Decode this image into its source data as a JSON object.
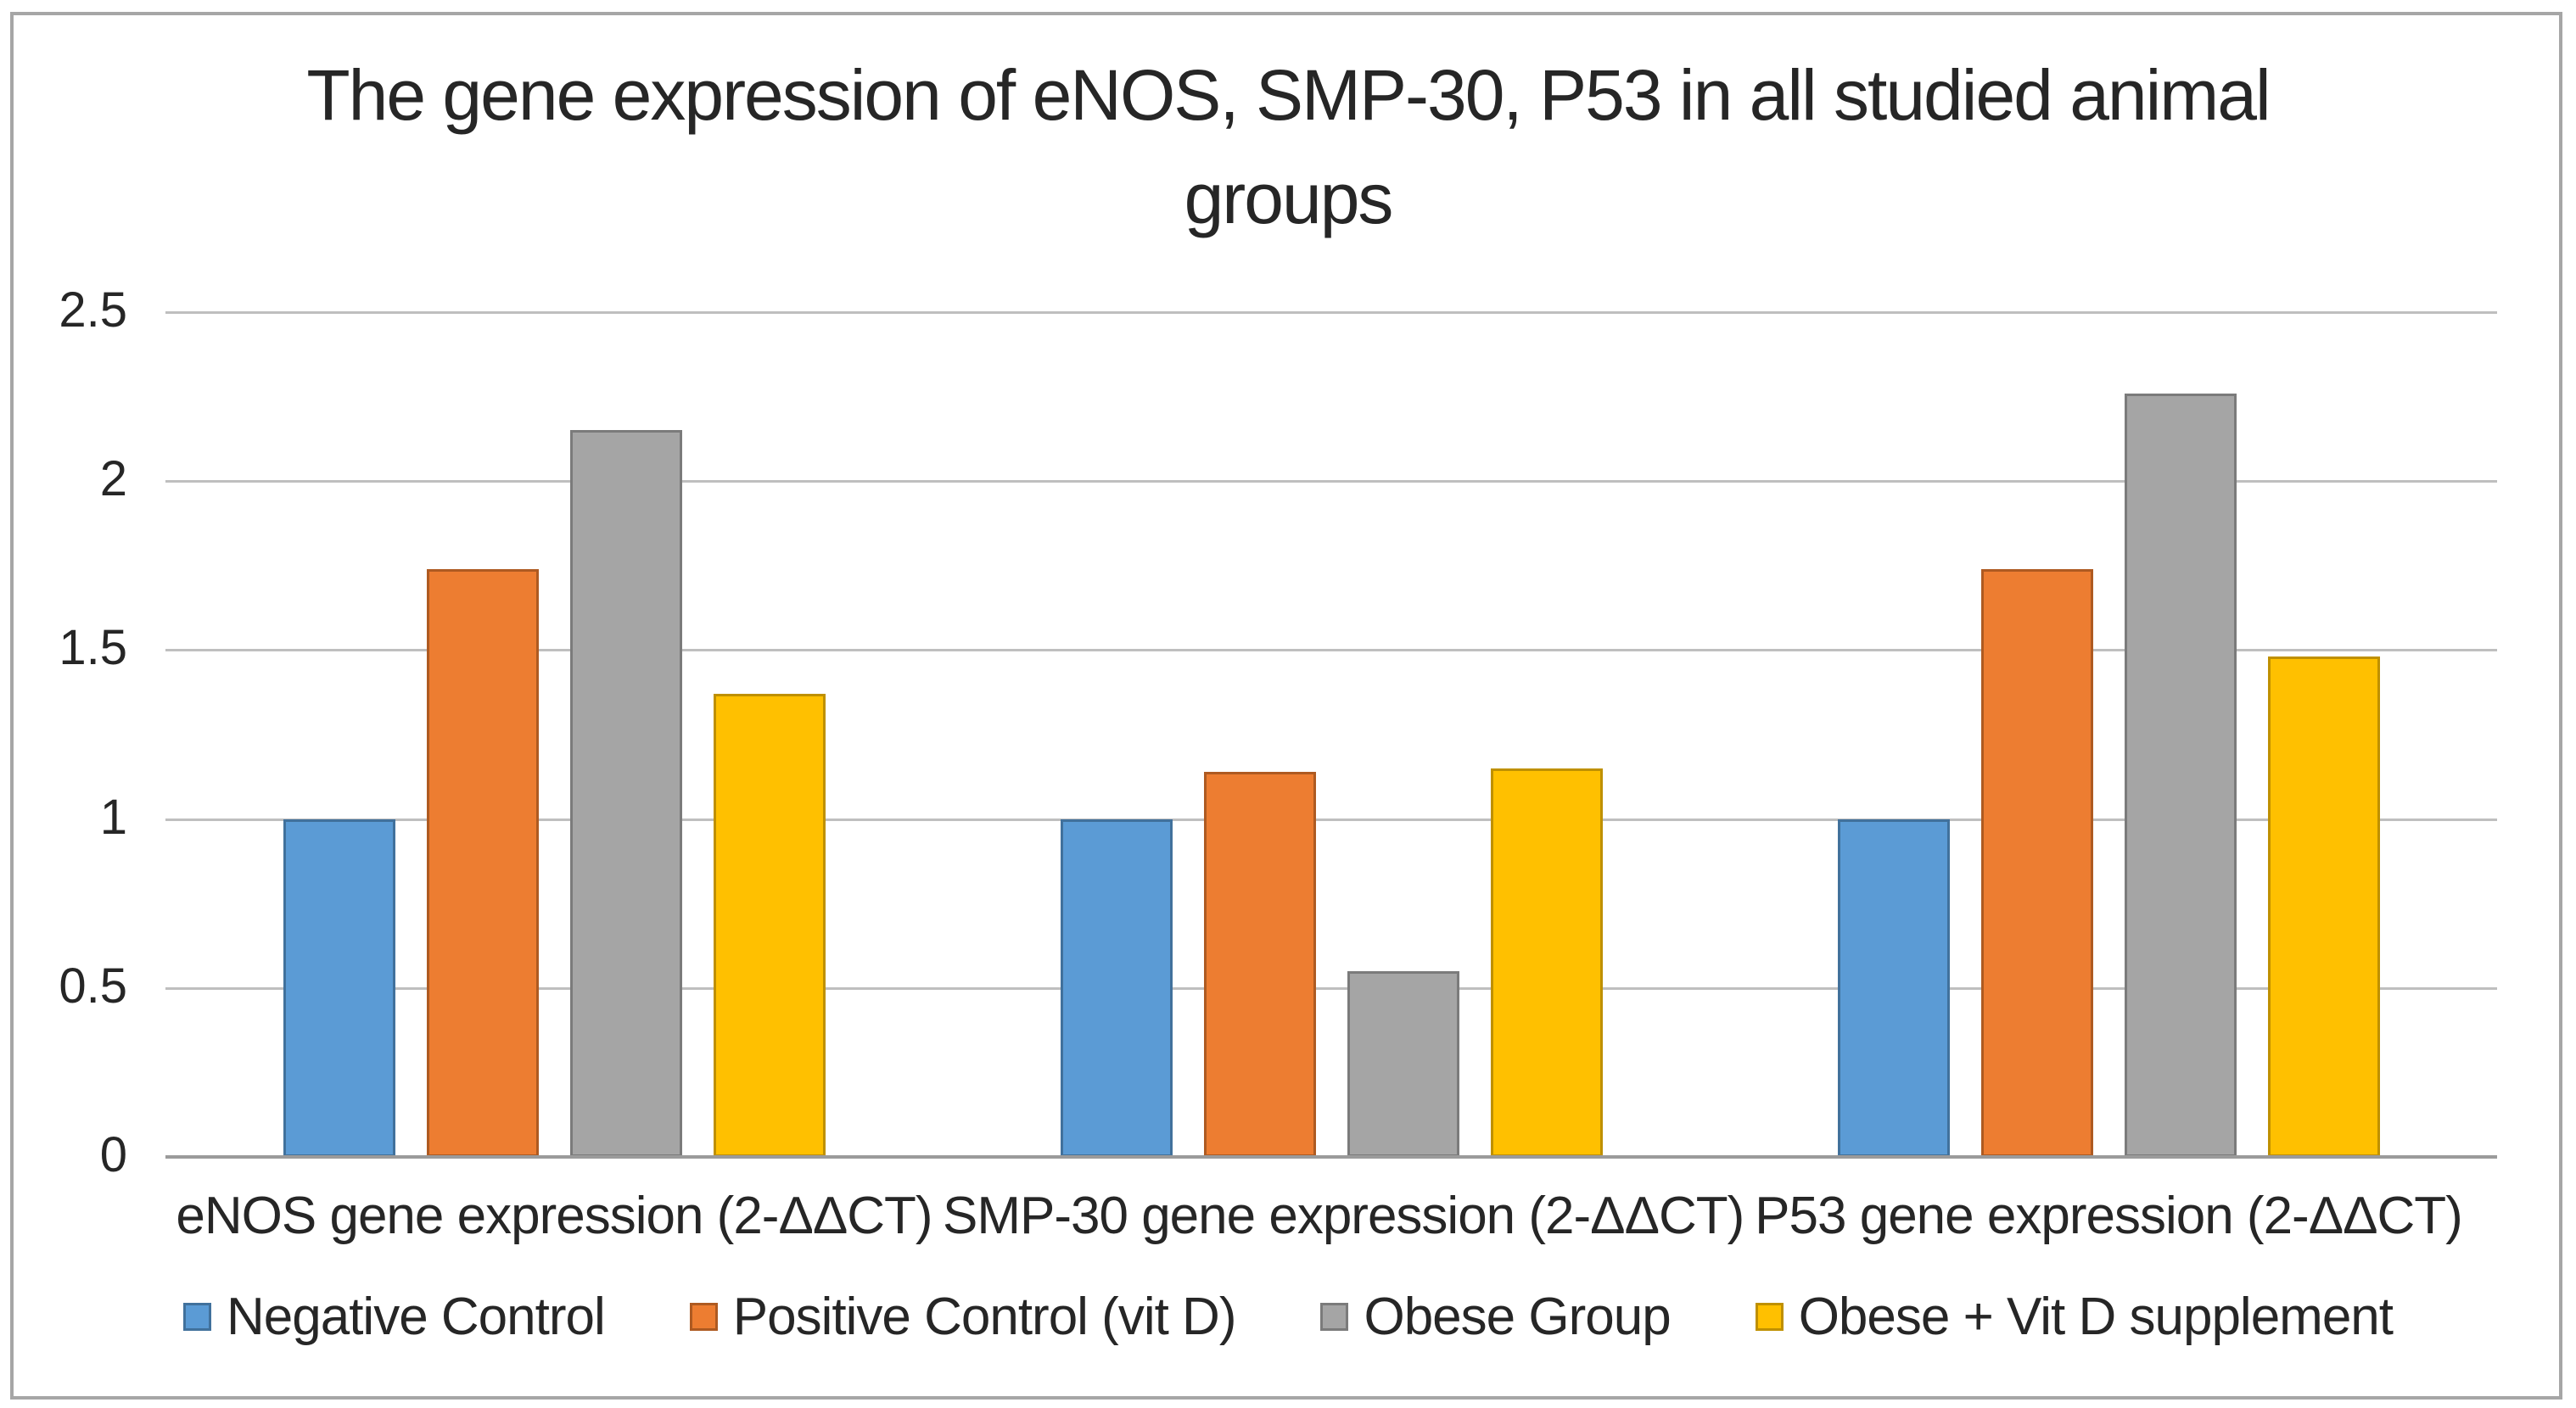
{
  "chart_data": {
    "type": "bar",
    "title": "The gene expression of eNOS, SMP-30, P53 in all studied animal groups",
    "categories": [
      "eNOS gene expression (2-ΔΔCT)",
      "SMP-30 gene expression (2-ΔΔCT)",
      "P53 gene expression (2-ΔΔCT)"
    ],
    "series": [
      {
        "name": "Negative Control",
        "color": "#5B9BD5",
        "border_color": "#41719C",
        "values": [
          1.0,
          1.0,
          1.0
        ]
      },
      {
        "name": "Positive Control (vit D)",
        "color": "#ED7D31",
        "border_color": "#AE5A21",
        "values": [
          1.74,
          1.14,
          1.74
        ]
      },
      {
        "name": "Obese Group",
        "color": "#A5A5A5",
        "border_color": "#7B7B7B",
        "values": [
          2.15,
          0.55,
          2.26
        ]
      },
      {
        "name": "Obese + Vit D supplement",
        "color": "#FFC000",
        "border_color": "#BF9000",
        "values": [
          1.37,
          1.15,
          1.48
        ]
      }
    ],
    "xlabel": "",
    "ylabel": "",
    "ylim": [
      0,
      2.5
    ],
    "yticks": [
      "0",
      "0.5",
      "1",
      "1.5",
      "2",
      "2.5"
    ],
    "grid": "horizontal",
    "legend_position": "bottom",
    "frame_color": "#a6a6a6",
    "gridline_color": "#bfbfbf",
    "axis_line_color": "#9b9b9b",
    "text_color": "#262626"
  }
}
